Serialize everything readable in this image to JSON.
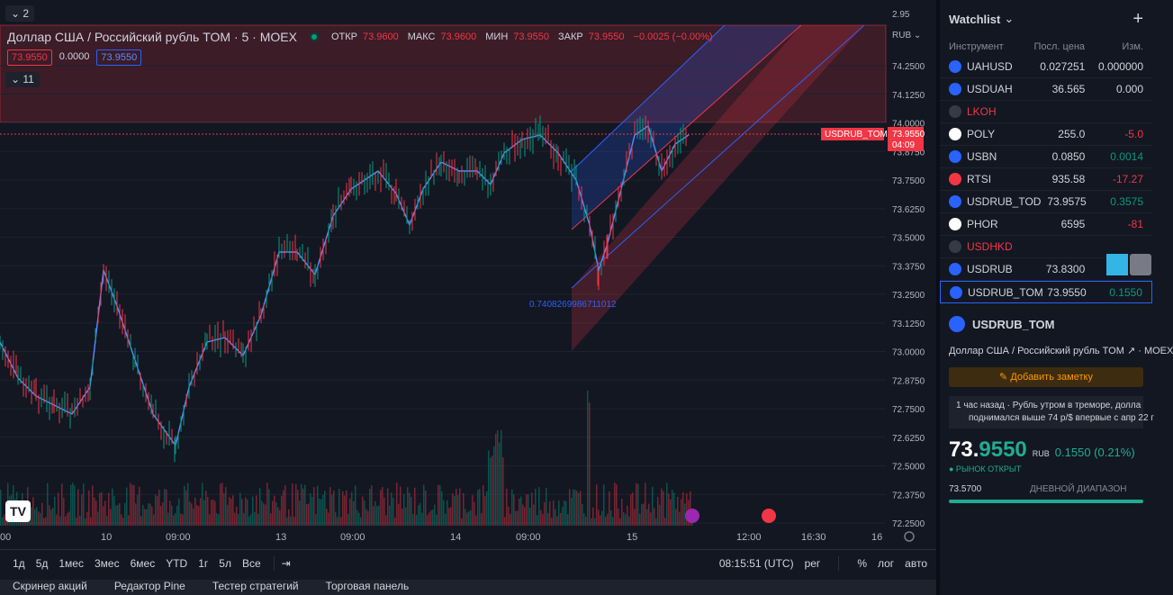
{
  "chart": {
    "collapse_count": "2",
    "title": "Доллар США / Российский рубль TOM · 5 · MOEX",
    "ohlc": [
      {
        "label": "ОТКР",
        "value": "73.9600"
      },
      {
        "label": "МАКС",
        "value": "73.9600"
      },
      {
        "label": "МИН",
        "value": "73.9550"
      },
      {
        "label": "ЗАКР",
        "value": "73.9550"
      }
    ],
    "change": "−0.0025 (−0.00%)",
    "price_boxes": [
      "73.9550",
      "0.0000",
      "73.9550"
    ],
    "indicators_count": "11",
    "currency": "RUB",
    "price_axis": [
      "2.95",
      "74.2500",
      "74.1250",
      "74.0000",
      "73.8750",
      "73.7500",
      "73.6250",
      "73.5000",
      "73.3750",
      "73.2500",
      "73.1250",
      "73.0000",
      "72.8750",
      "72.7500",
      "72.6250",
      "72.5000",
      "72.3750",
      "72.2500"
    ],
    "time_axis": [
      "00",
      "10",
      "09:00",
      "13",
      "09:00",
      "14",
      "09:00",
      "15",
      "12:00",
      "16:30",
      "16"
    ],
    "symbol_tag": "USDRUB_TOM",
    "last_price": "73.9550",
    "countdown": "04:09",
    "fib_label": "0.7408269986711012",
    "logo": "TV"
  },
  "toolbar": {
    "ranges": [
      "1д",
      "5д",
      "1мес",
      "3мес",
      "6мес",
      "YTD",
      "1г",
      "5л",
      "Все"
    ],
    "time": "08:15:51 (UTC)",
    "session": "рег",
    "pct": "%",
    "log": "лог",
    "auto": "авто"
  },
  "bottom_tabs": [
    "Скринер акций",
    "Редактор Pine",
    "Тестер стратегий",
    "Торговая панель"
  ],
  "watchlist": {
    "title": "Watchlist",
    "columns": [
      "Инструмент",
      "Посл. цена",
      "Изм."
    ],
    "rows": [
      {
        "sym": "UAHUSD",
        "last": "0.027251",
        "chg": "0.000000",
        "cls": "",
        "icon": "#2962ff"
      },
      {
        "sym": "USDUAH",
        "last": "36.565",
        "chg": "0.000",
        "cls": "",
        "icon": "#2962ff"
      },
      {
        "sym": "LKOH",
        "last": "",
        "chg": "",
        "cls": "red",
        "icon": "#363a45"
      },
      {
        "sym": "POLY",
        "last": "255.0",
        "chg": "-5.0",
        "cls": "red",
        "icon": "#ffffff"
      },
      {
        "sym": "USBN",
        "last": "0.0850",
        "chg": "0.0014",
        "cls": "green",
        "icon": "#2962ff"
      },
      {
        "sym": "RTSI",
        "last": "935.58",
        "chg": "-17.27",
        "cls": "red",
        "icon": "#f23645"
      },
      {
        "sym": "USDRUB_TOD",
        "last": "73.9575",
        "chg": "0.3575",
        "cls": "green",
        "icon": "#2962ff"
      },
      {
        "sym": "PHOR",
        "last": "6595",
        "chg": "-81",
        "cls": "red",
        "icon": "#ffffff"
      },
      {
        "sym": "USDHKD",
        "last": "",
        "chg": "",
        "cls": "red",
        "icon": "#363a45"
      },
      {
        "sym": "USDRUB",
        "last": "73.8300",
        "chg": "",
        "cls": "green",
        "icon": "#2962ff"
      },
      {
        "sym": "USDRUB_TOM",
        "last": "73.9550",
        "chg": "0.1550",
        "cls": "green",
        "icon": "#2962ff",
        "selected": true
      }
    ]
  },
  "detail": {
    "symbol": "USDRUB_TOM",
    "description": "Доллар США / Российский рубль TOM ↗ · MOEX",
    "add_note": "Добавить заметку",
    "news_line1": "1 час назад · Рубль утром в треморе, долла",
    "news_line2": "поднимался выше 74 р/$ впервые с апр 22 г",
    "price_main": "73.",
    "price_green": "9550",
    "price_currency": "RUB",
    "price_change": "0.1550 (0.21%)",
    "market_status": "● РЫНОК ОТКРЫТ",
    "range_low": "73.5700",
    "range_label": "ДНЕВНОЙ ДИАПАЗОН"
  }
}
